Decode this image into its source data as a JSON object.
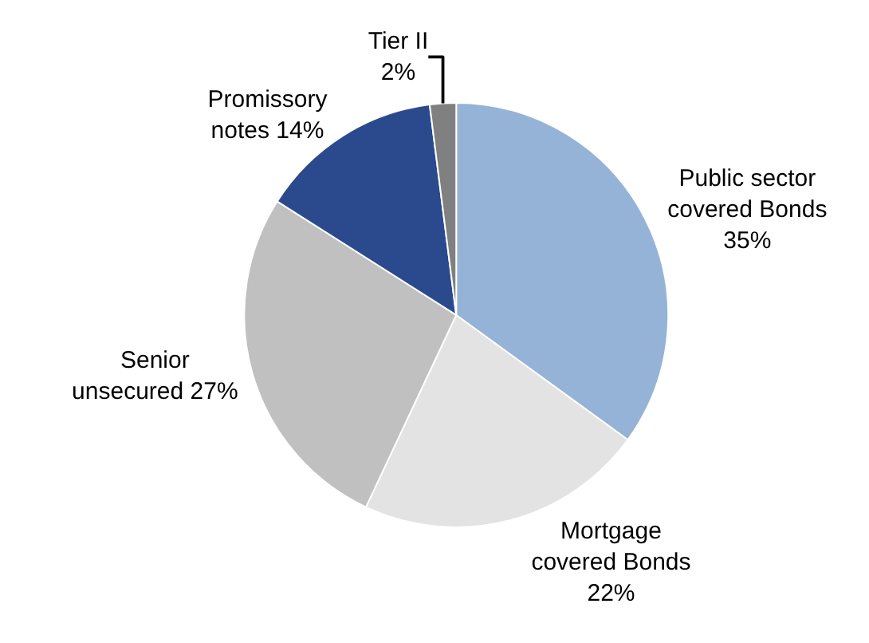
{
  "chart_data": {
    "type": "pie",
    "categories": [
      "Public sector covered Bonds",
      "Mortgage covered Bonds",
      "Senior unsecured",
      "Promissory notes",
      "Tier II"
    ],
    "values": [
      35,
      22,
      27,
      14,
      2
    ],
    "value_labels": [
      "35%",
      "22%",
      "27%",
      "14%",
      "2%"
    ],
    "colors": [
      "#95b3d7",
      "#e3e3e3",
      "#c0c0c0",
      "#2b4a8e",
      "#808080"
    ],
    "legend": false
  }
}
